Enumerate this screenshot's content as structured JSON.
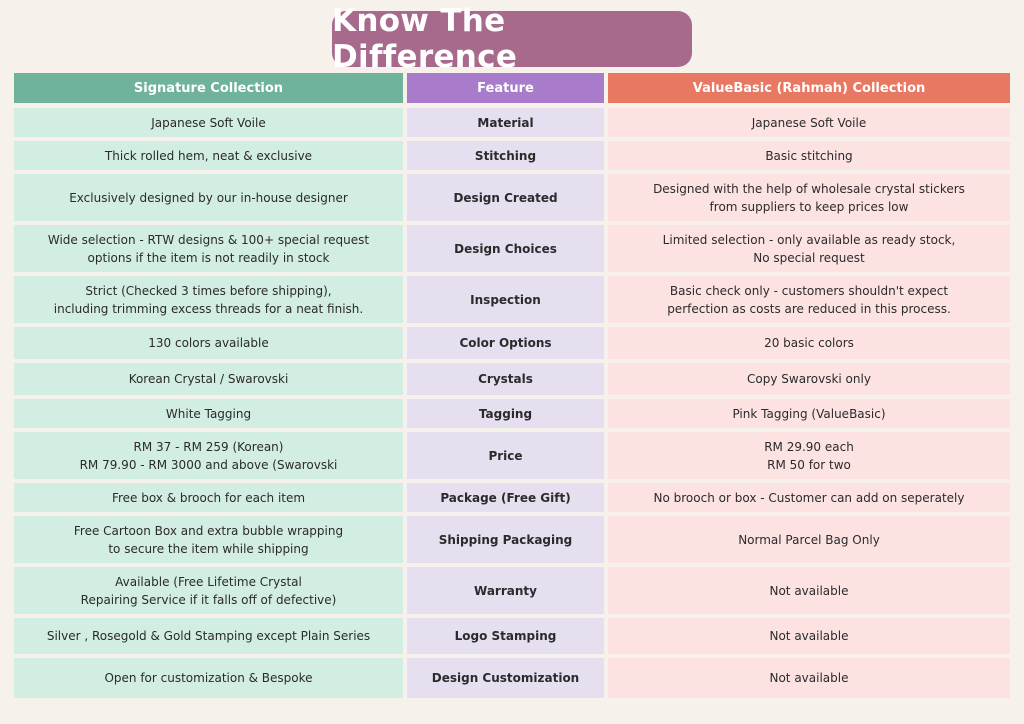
{
  "title": "Know The Difference",
  "headers": {
    "signature": "Signature Collection",
    "feature": "Feature",
    "valuebasic": "ValueBasic (Rahmah) Collection"
  },
  "rows": [
    {
      "signature": "Japanese Soft Voile",
      "feature": "Material",
      "valuebasic": "Japanese Soft Voile"
    },
    {
      "signature": "Thick rolled hem, neat & exclusive",
      "feature": "Stitching",
      "valuebasic": "Basic stitching"
    },
    {
      "signature": "Exclusively designed by our in-house designer",
      "feature": "Design Created",
      "valuebasic": "Designed with the help of wholesale crystal stickers\nfrom suppliers to keep prices low"
    },
    {
      "signature": "Wide selection - RTW designs & 100+ special request\noptions if the item is not readily in stock",
      "feature": "Design Choices",
      "valuebasic": "Limited selection - only available as ready stock,\nNo special request"
    },
    {
      "signature": "Strict (Checked 3 times before shipping),\nincluding trimming excess threads for a neat finish.",
      "feature": "Inspection",
      "valuebasic": "Basic check only - customers shouldn't expect\nperfection as costs are reduced in this process."
    },
    {
      "signature": "130 colors available",
      "feature": "Color Options",
      "valuebasic": "20 basic colors"
    },
    {
      "signature": "Korean Crystal / Swarovski",
      "feature": "Crystals",
      "valuebasic": "Copy Swarovski only"
    },
    {
      "signature": "White Tagging",
      "feature": "Tagging",
      "valuebasic": "Pink Tagging (ValueBasic)"
    },
    {
      "signature": "RM 37 - RM 259 (Korean)\nRM 79.90 - RM 3000 and above (Swarovski",
      "feature": "Price",
      "valuebasic": "RM 29.90 each\nRM 50 for two"
    },
    {
      "signature": "Free box & brooch for each item",
      "feature": "Package (Free Gift)",
      "valuebasic": "No brooch or box - Customer can add on seperately"
    },
    {
      "signature": "Free Cartoon Box and extra bubble wrapping\nto secure the item while shipping",
      "feature": "Shipping Packaging",
      "valuebasic": "Normal Parcel Bag Only"
    },
    {
      "signature": "Available (Free Lifetime Crystal\nRepairing Service if it falls off of defective)",
      "feature": "Warranty",
      "valuebasic": "Not available"
    },
    {
      "signature": "Silver , Rosegold & Gold Stamping except Plain Series",
      "feature": "Logo Stamping",
      "valuebasic": "Not available"
    },
    {
      "signature": "Open for customization & Bespoke",
      "feature": "Design Customization",
      "valuebasic": "Not available"
    }
  ]
}
